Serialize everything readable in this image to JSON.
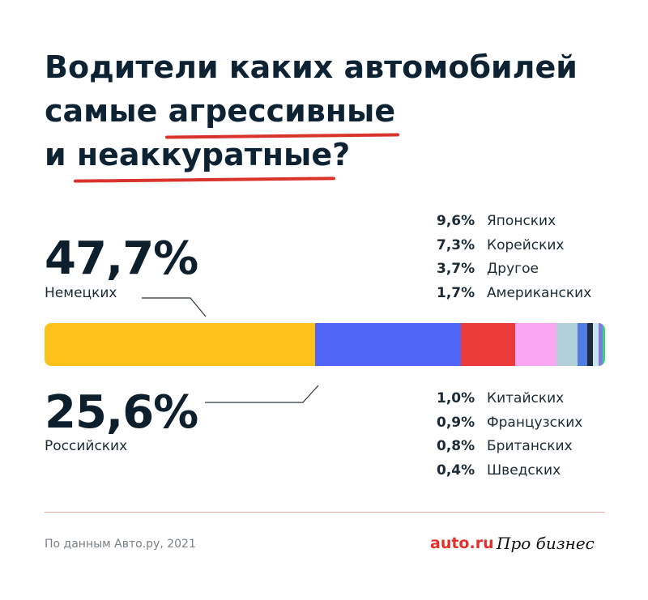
{
  "header": {
    "title_line1": "Водители каких автомобилей",
    "title_line2_plain": "самые ",
    "title_line2_hl": "агрессивные",
    "title_line3_plain": "и ",
    "title_line3_hl": "неаккуратные",
    "title_line3_end": "?",
    "accent_color": "#d9342b"
  },
  "callouts": {
    "top": {
      "value": "47,7%",
      "label": "Немецких"
    },
    "bottom": {
      "value": "25,6%",
      "label": "Российских"
    }
  },
  "chart_data": {
    "type": "bar",
    "stacked": true,
    "orientation": "horizontal",
    "title": "Водители каких автомобилей самые агрессивные и неаккуратные?",
    "unit": "%",
    "categories": [
      "Немецких",
      "Российских",
      "Японских",
      "Корейских",
      "Другое",
      "Американских",
      "Китайских",
      "Французских",
      "Британских",
      "Шведских"
    ],
    "series": [
      {
        "name": "Немецких",
        "value": 47.7,
        "label": "47,7%",
        "color": "#fcc21b"
      },
      {
        "name": "Российских",
        "value": 25.6,
        "label": "25,6%",
        "color": "#5065f8"
      },
      {
        "name": "Японских",
        "value": 9.6,
        "label": "9,6%",
        "color": "#eb3b39"
      },
      {
        "name": "Корейских",
        "value": 7.3,
        "label": "7,3%",
        "color": "#f8a6f1"
      },
      {
        "name": "Другое",
        "value": 3.7,
        "label": "3,7%",
        "color": "#b1d0da"
      },
      {
        "name": "Американских",
        "value": 1.7,
        "label": "1,7%",
        "color": "#4f7de2"
      },
      {
        "name": "Китайских",
        "value": 1.0,
        "label": "1,0%",
        "color": "#1f2a3c"
      },
      {
        "name": "Французских",
        "value": 0.9,
        "label": "0,9%",
        "color": "#c7e3ee"
      },
      {
        "name": "Британских",
        "value": 0.8,
        "label": "0,8%",
        "color": "#7a7fe0"
      },
      {
        "name": "Шведских",
        "value": 0.4,
        "label": "0,4%",
        "color": "#3dd07d"
      }
    ],
    "legend_top": [
      {
        "value": "9,6%",
        "label": "Японских"
      },
      {
        "value": "7,3%",
        "label": "Корейских"
      },
      {
        "value": "3,7%",
        "label": "Другое"
      },
      {
        "value": "1,7%",
        "label": "Американских"
      }
    ],
    "legend_bottom": [
      {
        "value": "1,0%",
        "label": "Китайских"
      },
      {
        "value": "0,9%",
        "label": "Французских"
      },
      {
        "value": "0,8%",
        "label": "Британских"
      },
      {
        "value": "0,4%",
        "label": "Шведских"
      }
    ]
  },
  "footer": {
    "source": "По данным Авто.ру, 2021",
    "logo_auto": "auto.ru",
    "logo_pro": "Про бизнес"
  }
}
